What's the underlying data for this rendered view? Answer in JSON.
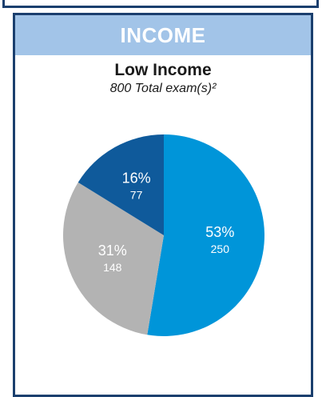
{
  "panel": {
    "title": "INCOME"
  },
  "colors": {
    "frame": "#1b3f6e",
    "header_bg": "#a2c4e8"
  },
  "chart_data": {
    "type": "pie",
    "title": "Low Income",
    "subtitle": "800 Total exam(s)²",
    "slices": [
      {
        "percent_label": "53%",
        "value": 250,
        "count_label": "250",
        "color": "#0095d9"
      },
      {
        "percent_label": "31%",
        "value": 148,
        "count_label": "148",
        "color": "#b3b3b3"
      },
      {
        "percent_label": "16%",
        "value": 77,
        "count_label": "77",
        "color": "#0f5a9b"
      }
    ],
    "start": "12 o'clock",
    "direction": "clockwise"
  }
}
